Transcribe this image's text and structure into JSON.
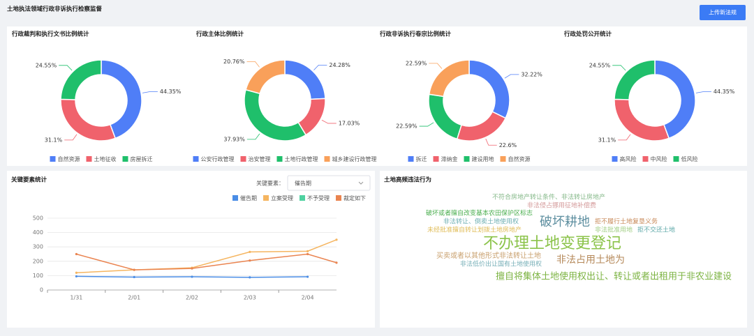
{
  "header": {
    "title": "土地执法领域行政非诉执行检察监督",
    "button": "上传新法规"
  },
  "chart_data": [
    {
      "type": "donut",
      "title": "行政裁判和执行文书比例统计",
      "categories": [
        "自然资源",
        "土地征收",
        "房屋拆迁"
      ],
      "values": [
        44.35,
        31.1,
        24.55
      ],
      "value_labels": [
        "44.35%",
        "31.1%",
        "24.55%"
      ],
      "colors": [
        "#4f7ef7",
        "#f0626c",
        "#1fbf6b"
      ]
    },
    {
      "type": "donut",
      "title": "行政主体比例统计",
      "categories": [
        "公安行政管理",
        "治安管理",
        "土地行政管理",
        "城乡建设行政管理"
      ],
      "values": [
        24.28,
        17.03,
        37.93,
        20.76
      ],
      "value_labels": [
        "24.28%",
        "17.03%",
        "37.93%",
        "20.76%"
      ],
      "colors": [
        "#4f7ef7",
        "#f0626c",
        "#1fbf6b",
        "#f9a05a"
      ]
    },
    {
      "type": "donut",
      "title": "行政非诉执行卷宗比例统计",
      "categories": [
        "拆迁",
        "滞纳金",
        "建设用地",
        "自然资源"
      ],
      "values": [
        32.22,
        22.6,
        22.59,
        22.59
      ],
      "value_labels": [
        "32.22%",
        "22.6%",
        "22.59%",
        "22.59%"
      ],
      "colors": [
        "#4f7ef7",
        "#f0626c",
        "#1fbf6b",
        "#f9a05a"
      ]
    },
    {
      "type": "donut",
      "title": "行政处罚公开统计",
      "categories": [
        "高风险",
        "中风险",
        "低风险"
      ],
      "values": [
        44.35,
        31.1,
        24.55
      ],
      "value_labels": [
        "44.35%",
        "31.1%",
        "24.55%"
      ],
      "colors": [
        "#4f7ef7",
        "#f0626c",
        "#1fbf6b"
      ]
    },
    {
      "type": "line",
      "title": "关键要素统计",
      "filter_label": "关键要素：",
      "filter_value": "催告期",
      "categories": [
        "1/31",
        "2/01",
        "2/02",
        "2/03",
        "2/04",
        null
      ],
      "series": [
        {
          "name": "催告期",
          "color": "#4a8de6",
          "values": [
            95,
            90,
            92,
            88,
            92,
            null
          ]
        },
        {
          "name": "立案受理",
          "color": "#f5b560",
          "values": [
            120,
            140,
            155,
            265,
            270,
            350
          ]
        },
        {
          "name": "不予受理",
          "color": "#4fd1a0",
          "values": [
            null,
            null,
            null,
            null,
            null,
            null
          ]
        },
        {
          "name": "裁定如下",
          "color": "#ea8450",
          "values": [
            250,
            140,
            150,
            205,
            250,
            190
          ]
        }
      ],
      "ylim": [
        0,
        500
      ],
      "yticks": [
        0,
        100,
        200,
        300,
        400,
        500
      ],
      "grid": true
    }
  ],
  "word_cloud": {
    "title": "土地高频违法行为",
    "words": [
      {
        "text": "不符合房地产转让条件、非法转让房地产",
        "color": "#86b98a"
      },
      {
        "text": "非法侵占挪用征地补偿费",
        "color": "#d49a9a"
      },
      {
        "text": "破坏或者擅自改变基本农田保护区标志",
        "color": "#4caf50"
      },
      {
        "text": "拒不履行土地复垦义务",
        "color": "#c88a5a"
      },
      {
        "text": "非法转让、倒卖土地使用权",
        "color": "#6fb0b3"
      },
      {
        "text": "破坏耕地",
        "color": "#5e8fa0"
      },
      {
        "text": "未经批准擅自转让划拨土地房地产",
        "color": "#e0bd5a"
      },
      {
        "text": "非法批准用地",
        "color": "#a3cf86"
      },
      {
        "text": "拒不交还土地",
        "color": "#5fa9a9"
      },
      {
        "text": "不办理土地变更登记",
        "color": "#8bc34a"
      },
      {
        "text": "买卖或者以其他形式非法转让土地",
        "color": "#c9a06e"
      },
      {
        "text": "非法占用土地为",
        "color": "#b5895a"
      },
      {
        "text": "非法低价出让国有土地使用权",
        "color": "#78b0b8"
      },
      {
        "text": "擅自将集体土地使用权出让、转让或者出租用于非农业建设",
        "color": "#7cb342"
      }
    ]
  }
}
